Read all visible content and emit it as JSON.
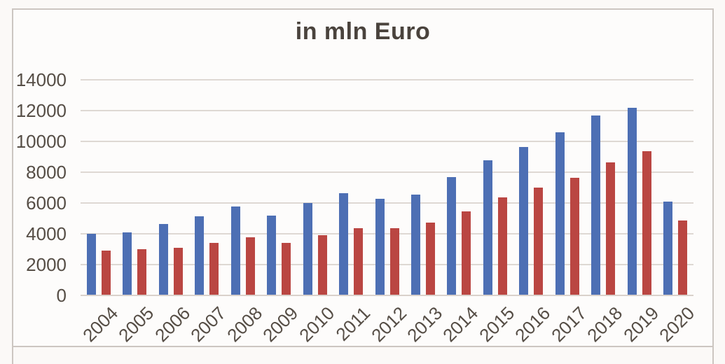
{
  "chart_data": {
    "type": "bar",
    "title": "in mln Euro",
    "categories": [
      "2004",
      "2005",
      "2006",
      "2007",
      "2008",
      "2009",
      "2010",
      "2011",
      "2012",
      "2013",
      "2014",
      "2015",
      "2016",
      "2017",
      "2018",
      "2019",
      "2020"
    ],
    "series": [
      {
        "name": "blue-series",
        "color": "#4d6fb4",
        "values": [
          3950,
          4050,
          4600,
          5100,
          5750,
          5150,
          5950,
          6600,
          6250,
          6500,
          7650,
          8750,
          9600,
          10550,
          11650,
          12150,
          6050
        ]
      },
      {
        "name": "red-series",
        "color": "#ba4642",
        "values": [
          2850,
          2950,
          3050,
          3350,
          3750,
          3350,
          3850,
          4300,
          4300,
          4700,
          5400,
          6300,
          6950,
          7600,
          8600,
          9300,
          4800
        ]
      }
    ],
    "xlabel": "",
    "ylabel": "",
    "ylim": [
      0,
      14000
    ],
    "ytick_step": 2000,
    "yticks": [
      "0",
      "2000",
      "4000",
      "6000",
      "8000",
      "10000",
      "12000",
      "14000"
    ],
    "grid": true,
    "legend": "none"
  },
  "colors": {
    "grid": "#ded8d3",
    "zero_line": "#d9d1cb",
    "axis_text": "#564e46",
    "title_text": "#4a433d",
    "frame_border": "#ccc6c1",
    "background": "#fbf9f7",
    "plot_background": "#fdfcfb"
  }
}
